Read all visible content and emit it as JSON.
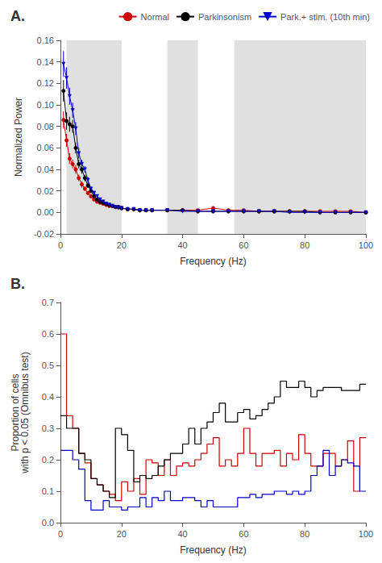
{
  "chart_data": [
    {
      "type": "line",
      "title": "A.",
      "xlabel": "Frequency (Hz)",
      "ylabel": "Normalized Power",
      "xlim": [
        0,
        100
      ],
      "ylim": [
        -0.02,
        0.16
      ],
      "xticks": [
        0,
        20,
        40,
        60,
        80,
        100
      ],
      "yticks": [
        -0.02,
        {
          "value": 0,
          "label": "0.00"
        },
        0.02,
        0.04,
        0.06,
        0.08,
        {
          "value": 0.1,
          "label": "0.10"
        },
        0.12,
        0.14,
        0.16
      ],
      "grid": false,
      "legend": "upper right",
      "shaded_regions": {
        "color": "#e0e0e0",
        "ranges": [
          [
            2,
            20
          ],
          [
            35,
            45
          ],
          [
            57,
            100
          ]
        ]
      },
      "x": [
        1,
        2,
        3,
        4,
        5,
        6,
        7,
        8,
        9,
        10,
        11,
        12,
        13,
        14,
        15,
        16,
        17,
        18,
        19,
        20,
        22,
        24,
        26,
        28,
        30,
        35,
        40,
        45,
        50,
        55,
        60,
        65,
        70,
        75,
        80,
        85,
        90,
        95,
        100
      ],
      "series": [
        {
          "name": "Normal",
          "color": "#cc0000",
          "marker": "circle",
          "values": [
            0.086,
            0.067,
            0.05,
            0.045,
            0.04,
            0.032,
            0.026,
            0.022,
            0.018,
            0.015,
            0.012,
            0.01,
            0.009,
            0.008,
            0.007,
            0.006,
            0.006,
            0.005,
            0.005,
            0.004,
            0.003,
            0.003,
            0.002,
            0.002,
            0.002,
            0.002,
            0.002,
            0.002,
            0.004,
            0.002,
            0.002,
            0.001,
            0.001,
            0.001,
            0.001,
            0.001,
            0.001,
            0.001,
            0.0
          ],
          "errors": [
            0.008,
            0.006,
            0.005,
            0.004,
            0.004,
            0.003,
            0.003,
            0.002,
            0.002,
            0.002,
            0.001,
            0.001,
            0.001,
            0.001,
            0.001,
            0.001,
            0.001,
            0.001,
            0.001,
            0.001,
            0.001,
            0.001,
            0.001,
            0.001,
            0.001,
            0.001,
            0.001,
            0.001,
            0.001,
            0.001,
            0.001,
            0.001,
            0.001,
            0.001,
            0.001,
            0.001,
            0.001,
            0.001,
            0.001
          ]
        },
        {
          "name": "Parkinsonism",
          "color": "#000000",
          "marker": "circle",
          "values": [
            0.113,
            0.085,
            0.082,
            0.08,
            0.06,
            0.045,
            0.04,
            0.032,
            0.025,
            0.02,
            0.015,
            0.012,
            0.01,
            0.009,
            0.008,
            0.007,
            0.006,
            0.005,
            0.005,
            0.004,
            0.003,
            0.003,
            0.002,
            0.002,
            0.002,
            0.002,
            0.002,
            0.001,
            0.001,
            0.001,
            0.001,
            0.001,
            0.001,
            0.001,
            0.001,
            0.0,
            0.0,
            0.0,
            0.0
          ],
          "errors": [
            0.01,
            0.008,
            0.007,
            0.006,
            0.005,
            0.004,
            0.004,
            0.003,
            0.002,
            0.002,
            0.002,
            0.001,
            0.001,
            0.001,
            0.001,
            0.001,
            0.001,
            0.001,
            0.001,
            0.001,
            0.001,
            0.001,
            0.001,
            0.001,
            0.001,
            0.001,
            0.001,
            0.001,
            0.001,
            0.001,
            0.001,
            0.001,
            0.001,
            0.001,
            0.001,
            0.001,
            0.001,
            0.001,
            0.001
          ]
        },
        {
          "name": "Park.+ stim. (10th min)",
          "color": "#0000cc",
          "marker": "triangle-down",
          "values": [
            0.138,
            0.125,
            0.108,
            0.095,
            0.078,
            0.055,
            0.045,
            0.04,
            0.03,
            0.022,
            0.018,
            0.015,
            0.012,
            0.01,
            0.008,
            0.007,
            0.006,
            0.005,
            0.004,
            0.004,
            0.003,
            0.003,
            0.002,
            0.002,
            0.002,
            0.002,
            0.001,
            0.001,
            0.001,
            0.001,
            0.001,
            0.001,
            0.001,
            0.0,
            0.0,
            0.0,
            0.0,
            0.0,
            0.0
          ],
          "errors": [
            0.012,
            0.01,
            0.008,
            0.007,
            0.006,
            0.005,
            0.004,
            0.003,
            0.003,
            0.002,
            0.002,
            0.001,
            0.001,
            0.001,
            0.001,
            0.001,
            0.001,
            0.001,
            0.001,
            0.001,
            0.001,
            0.001,
            0.001,
            0.001,
            0.001,
            0.001,
            0.001,
            0.001,
            0.001,
            0.001,
            0.001,
            0.001,
            0.001,
            0.001,
            0.001,
            0.001,
            0.001,
            0.001,
            0.001
          ]
        }
      ]
    },
    {
      "type": "histogram",
      "title": "B.",
      "xlabel": "Frequency (Hz)",
      "ylabel": "Proportion of cells\nwith p < 0.05 (Omnibus test)",
      "xlim": [
        0,
        100
      ],
      "ylim": [
        0,
        0.7
      ],
      "xticks": [
        0,
        20,
        40,
        60,
        80,
        100
      ],
      "yticks": [
        {
          "value": 0,
          "label": "0.0"
        },
        0.1,
        0.2,
        0.3,
        0.4,
        0.5,
        0.6,
        0.7
      ],
      "grid": false,
      "bins": [
        0,
        2,
        4,
        6,
        8,
        10,
        12,
        14,
        16,
        18,
        20,
        22,
        24,
        26,
        28,
        30,
        32,
        34,
        36,
        38,
        40,
        42,
        44,
        46,
        48,
        50,
        52,
        54,
        56,
        58,
        60,
        62,
        64,
        66,
        68,
        70,
        72,
        74,
        76,
        78,
        80,
        82,
        84,
        86,
        88,
        90,
        92,
        94,
        96,
        98,
        100
      ],
      "series": [
        {
          "color": "#cc0000",
          "values": [
            0.6,
            0.34,
            0.3,
            0.22,
            0.19,
            0.14,
            0.12,
            0.1,
            0.09,
            0.07,
            0.13,
            0.1,
            0.14,
            0.09,
            0.2,
            0.19,
            0.15,
            0.2,
            0.15,
            0.18,
            0.19,
            0.18,
            0.2,
            0.22,
            0.25,
            0.27,
            0.18,
            0.2,
            0.18,
            0.22,
            0.3,
            0.22,
            0.18,
            0.22,
            0.22,
            0.23,
            0.18,
            0.22,
            0.2,
            0.28,
            0.22,
            0.18,
            0.18,
            0.22,
            0.22,
            0.18,
            0.2,
            0.26,
            0.1,
            0.27
          ]
        },
        {
          "color": "#000000",
          "values": [
            0.34,
            0.3,
            0.3,
            0.22,
            0.2,
            0.14,
            0.12,
            0.1,
            0.08,
            0.3,
            0.28,
            0.23,
            0.13,
            0.15,
            0.14,
            0.15,
            0.18,
            0.2,
            0.22,
            0.22,
            0.25,
            0.3,
            0.25,
            0.3,
            0.32,
            0.35,
            0.38,
            0.32,
            0.32,
            0.35,
            0.36,
            0.33,
            0.34,
            0.36,
            0.38,
            0.4,
            0.45,
            0.43,
            0.43,
            0.45,
            0.43,
            0.4,
            0.42,
            0.43,
            0.43,
            0.43,
            0.42,
            0.42,
            0.42,
            0.44
          ]
        },
        {
          "color": "#0000cc",
          "values": [
            0.23,
            0.23,
            0.2,
            0.17,
            0.07,
            0.04,
            0.04,
            0.07,
            0.05,
            0.05,
            0.04,
            0.05,
            0.05,
            0.08,
            0.05,
            0.08,
            0.07,
            0.1,
            0.07,
            0.07,
            0.08,
            0.08,
            0.07,
            0.05,
            0.07,
            0.05,
            0.05,
            0.05,
            0.05,
            0.08,
            0.08,
            0.09,
            0.08,
            0.09,
            0.09,
            0.1,
            0.1,
            0.09,
            0.1,
            0.09,
            0.1,
            0.15,
            0.18,
            0.23,
            0.15,
            0.18,
            0.2,
            0.19,
            0.18,
            0.1
          ]
        }
      ]
    }
  ]
}
